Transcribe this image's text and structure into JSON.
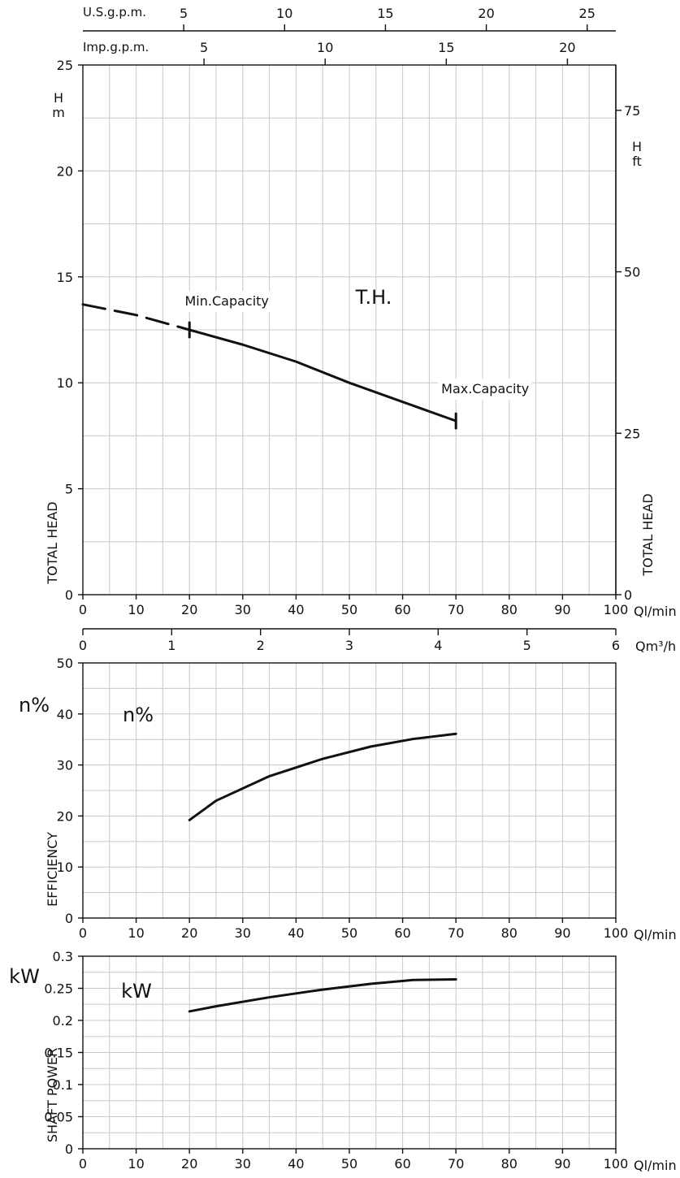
{
  "chart_data": [
    {
      "type": "line",
      "name_key": "total-head",
      "title": "T.H.",
      "x": [
        0,
        10,
        20,
        30,
        40,
        50,
        60,
        70
      ],
      "series": [
        {
          "values": [
            13.7,
            13.2,
            12.5,
            11.8,
            11.0,
            10.0,
            9.1,
            8.2
          ],
          "dashed_until_x": 20
        }
      ],
      "xlim": [
        0,
        100
      ],
      "ylim": [
        0,
        25
      ],
      "xticks": [
        0,
        10,
        20,
        30,
        40,
        50,
        60,
        70,
        80,
        90,
        100
      ],
      "yticks": [
        0,
        5,
        10,
        15,
        20,
        25
      ],
      "xunit": "Ql/min",
      "ylabel": "TOTAL HEAD",
      "yunit": "H\nm",
      "y2label": "TOTAL HEAD",
      "y2unit": "H\nft",
      "y2ticks": [
        0,
        25,
        50,
        75
      ],
      "y2_per_y1": 3.28084,
      "top_axis_1": {
        "label": "U.S.g.p.m.",
        "ticks": [
          5,
          10,
          15,
          20,
          25
        ],
        "lpm_per_unit": 3.785
      },
      "top_axis_2": {
        "label": "Imp.g.p.m.",
        "ticks": [
          5,
          10,
          15,
          20
        ],
        "lpm_per_unit": 4.546
      },
      "bottom_axis_2": {
        "label": "Qm³/h",
        "ticks": [
          0,
          1,
          2,
          3,
          4,
          5,
          6
        ],
        "lpm_per_unit": 16.6667
      },
      "annotations": [
        {
          "text": "Min.Capacity",
          "x": 20
        },
        {
          "text": "Max.Capacity",
          "x": 70
        }
      ],
      "grid": true
    },
    {
      "type": "line",
      "name_key": "efficiency",
      "title": "n%",
      "x": [
        20,
        25,
        35,
        45,
        54,
        62,
        70
      ],
      "series": [
        {
          "values": [
            19.2,
            23.0,
            27.8,
            31.2,
            33.6,
            35.1,
            36.1
          ]
        }
      ],
      "xlim": [
        0,
        100
      ],
      "ylim": [
        0,
        50
      ],
      "xticks": [
        0,
        10,
        20,
        30,
        40,
        50,
        60,
        70,
        80,
        90,
        100
      ],
      "yticks": [
        0,
        10,
        20,
        30,
        40,
        50
      ],
      "xunit": "Ql/min",
      "ylabel": "EFFICIENCY",
      "yunit": "n%",
      "grid": true
    },
    {
      "type": "line",
      "name_key": "shaft-power",
      "title": "kW",
      "x": [
        20,
        25,
        35,
        45,
        54,
        62,
        70
      ],
      "series": [
        {
          "values": [
            0.214,
            0.222,
            0.236,
            0.248,
            0.257,
            0.263,
            0.264
          ]
        }
      ],
      "xlim": [
        0,
        100
      ],
      "ylim": [
        0,
        0.3
      ],
      "xticks": [
        0,
        10,
        20,
        30,
        40,
        50,
        60,
        70,
        80,
        90,
        100
      ],
      "yticks": [
        0,
        0.05,
        0.1,
        0.15,
        0.2,
        0.25,
        0.3
      ],
      "xunit": "Ql/min",
      "ylabel": "SHAFT POWER",
      "yunit": "kW",
      "grid": true
    }
  ]
}
